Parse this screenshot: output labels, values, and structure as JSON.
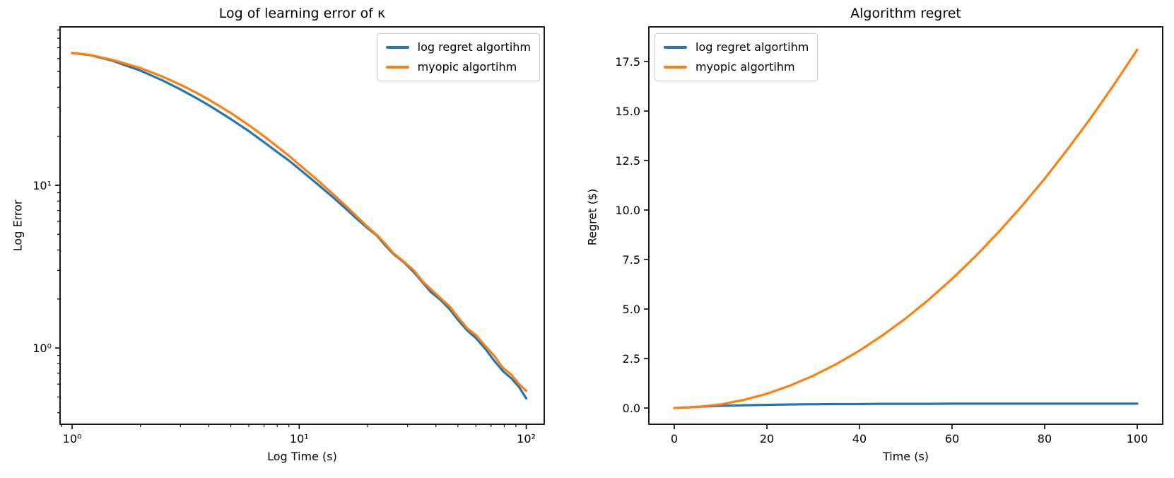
{
  "figure": {
    "background": "#ffffff",
    "spine_color": "#000000",
    "accent_blue": "#1f77b4",
    "accent_orange": "#ff7f0e"
  },
  "chart_data": [
    {
      "type": "line",
      "title": "Log of learning error of κ",
      "xlabel": "Log Time (s)",
      "ylabel": "Log Error",
      "xscale": "log",
      "yscale": "log",
      "xlim": [
        0.885,
        120
      ],
      "ylim": [
        0.34,
        94
      ],
      "grid": false,
      "legend_position": "upper right",
      "xticks": [
        {
          "v": 1,
          "label": "10⁰"
        },
        {
          "v": 10,
          "label": "10¹"
        },
        {
          "v": 100,
          "label": "10²"
        }
      ],
      "yticks": [
        {
          "v": 1,
          "label": "10⁰"
        },
        {
          "v": 10,
          "label": "10¹"
        }
      ],
      "xminor": [
        0.9,
        2,
        3,
        4,
        5,
        6,
        7,
        8,
        9,
        20,
        30,
        40,
        50,
        60,
        70,
        80,
        90
      ],
      "yminor": [
        0.4,
        0.5,
        0.6,
        0.7,
        0.8,
        0.9,
        2,
        3,
        4,
        5,
        6,
        7,
        8,
        9,
        20,
        30,
        40,
        50,
        60,
        70,
        80,
        90
      ],
      "x": [
        1,
        1.2,
        1.5,
        2,
        2.5,
        3,
        3.5,
        4,
        5,
        6,
        7,
        8,
        9,
        10,
        12,
        14,
        16,
        18,
        20,
        22,
        24,
        26,
        29,
        32,
        35,
        38,
        42,
        46,
        50,
        55,
        60,
        66,
        72,
        79,
        86,
        93,
        100
      ],
      "series": [
        {
          "name": "log regret algortihm",
          "color": "#1f77b4",
          "values": [
            65,
            63,
            58.3,
            50.6,
            44.1,
            38.8,
            34.5,
            31,
            25.5,
            21.5,
            18.4,
            16,
            14.2,
            12.6,
            10.2,
            8.5,
            7.2,
            6.2,
            5.45,
            4.9,
            4.25,
            3.78,
            3.35,
            2.92,
            2.52,
            2.21,
            1.97,
            1.73,
            1.49,
            1.28,
            1.15,
            0.99,
            0.84,
            0.72,
            0.65,
            0.575,
            0.49
          ]
        },
        {
          "name": "myopic algortihm",
          "color": "#ff7f0e",
          "values": [
            65,
            63.2,
            59,
            52.5,
            46.5,
            41.5,
            37.2,
            33.6,
            27.8,
            23.4,
            20,
            17.3,
            15.2,
            13.4,
            10.8,
            8.9,
            7.5,
            6.4,
            5.55,
            4.95,
            4.35,
            3.82,
            3.38,
            3,
            2.56,
            2.3,
            2.02,
            1.8,
            1.55,
            1.32,
            1.2,
            1.03,
            0.9,
            0.755,
            0.685,
            0.6,
            0.545
          ]
        }
      ]
    },
    {
      "type": "line",
      "title": "Algorithm regret",
      "xlabel": "Time (s)",
      "ylabel": "Regret ($)",
      "xscale": "linear",
      "yscale": "linear",
      "xlim": [
        -5.5,
        105.5
      ],
      "ylim": [
        -0.82,
        19.25
      ],
      "grid": false,
      "legend_position": "upper left",
      "xticks": [
        {
          "v": 0,
          "label": "0"
        },
        {
          "v": 20,
          "label": "20"
        },
        {
          "v": 40,
          "label": "40"
        },
        {
          "v": 60,
          "label": "60"
        },
        {
          "v": 80,
          "label": "80"
        },
        {
          "v": 100,
          "label": "100"
        }
      ],
      "yticks": [
        {
          "v": 0,
          "label": "0.0"
        },
        {
          "v": 2.5,
          "label": "2.5"
        },
        {
          "v": 5,
          "label": "5.0"
        },
        {
          "v": 7.5,
          "label": "7.5"
        },
        {
          "v": 10,
          "label": "10.0"
        },
        {
          "v": 12.5,
          "label": "12.5"
        },
        {
          "v": 15,
          "label": "15.0"
        },
        {
          "v": 17.5,
          "label": "17.5"
        }
      ],
      "xminor": [],
      "yminor": [],
      "x": [
        0,
        5,
        10,
        15,
        20,
        25,
        30,
        35,
        40,
        45,
        50,
        55,
        60,
        65,
        70,
        75,
        80,
        85,
        90,
        95,
        100
      ],
      "series": [
        {
          "name": "log regret algortihm",
          "color": "#1f77b4",
          "values": [
            0,
            0.06,
            0.11,
            0.14,
            0.16,
            0.18,
            0.19,
            0.2,
            0.2,
            0.21,
            0.21,
            0.21,
            0.22,
            0.22,
            0.22,
            0.22,
            0.22,
            0.22,
            0.22,
            0.22,
            0.22
          ]
        },
        {
          "name": "myopic algortihm",
          "color": "#ff7f0e",
          "values": [
            0,
            0.05,
            0.18,
            0.41,
            0.72,
            1.13,
            1.63,
            2.22,
            2.9,
            3.67,
            4.53,
            5.48,
            6.52,
            7.65,
            8.87,
            10.18,
            11.58,
            13.08,
            14.66,
            16.34,
            18.1
          ]
        }
      ]
    }
  ]
}
